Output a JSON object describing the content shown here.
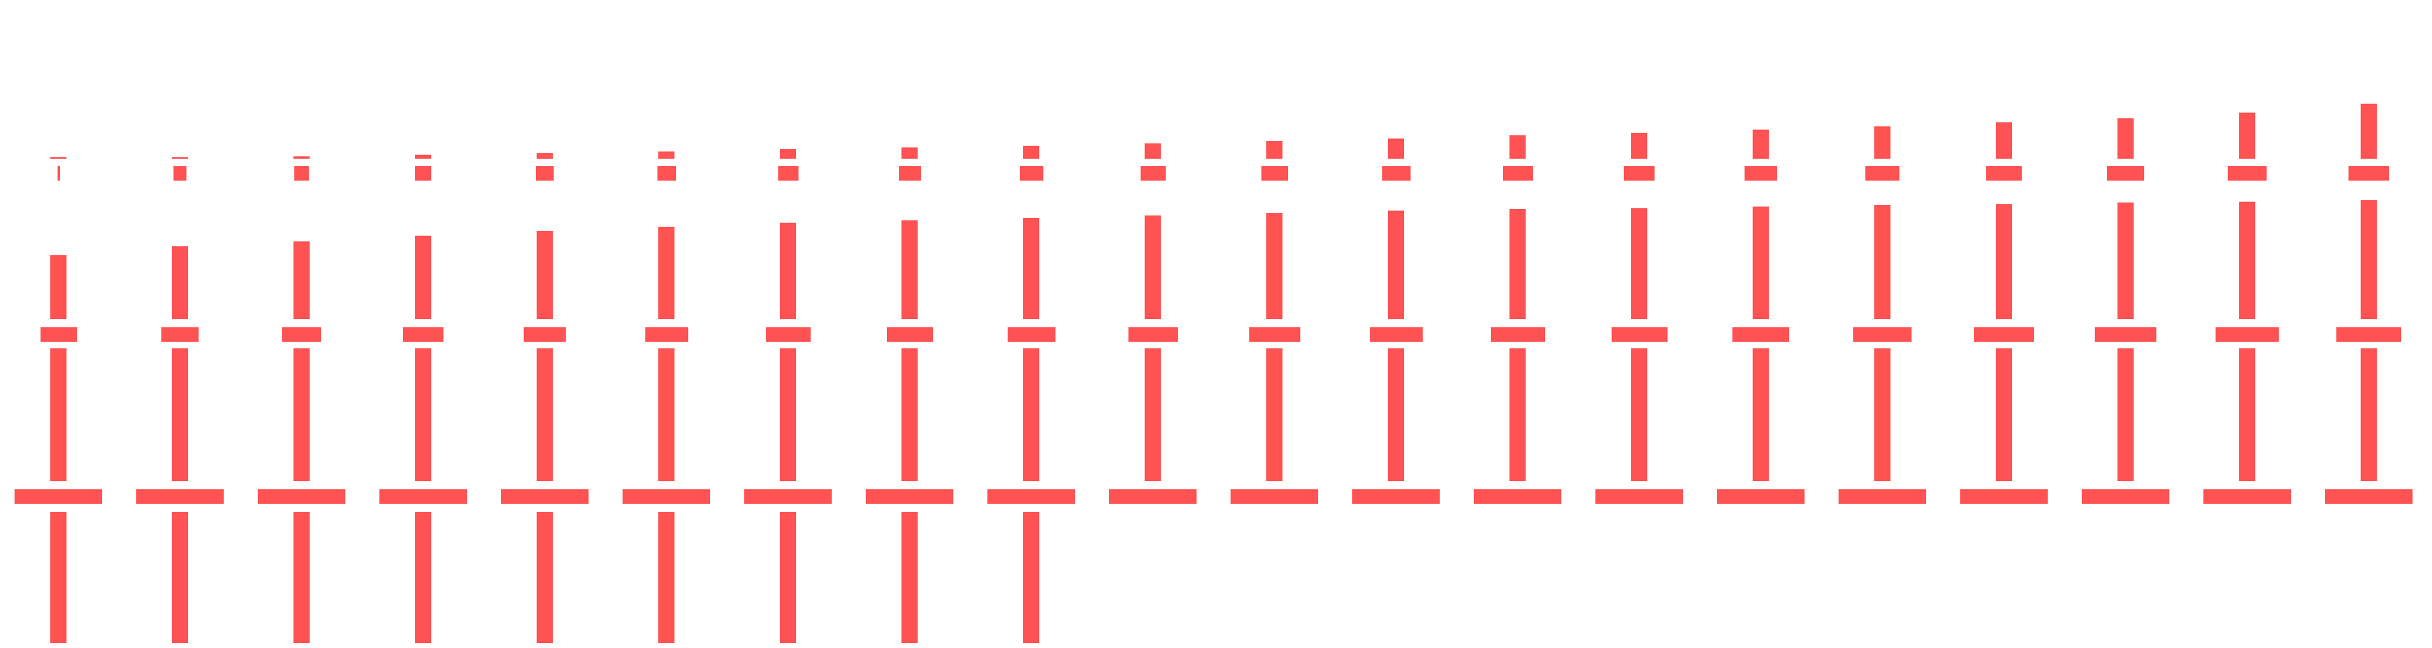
{
  "colors": {
    "background": "#ffffff",
    "mark": "#ff5252"
  },
  "columns": [
    {
      "bars": [
        0.0,
        0.33,
        1.0,
        1.0
      ],
      "stems": [
        0.02,
        0.5,
        1.0,
        1.0
      ]
    },
    {
      "bars": [
        0.02,
        0.34,
        1.0,
        1.0
      ],
      "stems": [
        0.03,
        0.57,
        1.0,
        1.0
      ]
    },
    {
      "bars": [
        0.04,
        0.36,
        1.0,
        1.0
      ],
      "stems": [
        0.05,
        0.61,
        1.0,
        1.0
      ]
    },
    {
      "bars": [
        0.06,
        0.38,
        1.0,
        1.0
      ],
      "stems": [
        0.07,
        0.65,
        1.0,
        1.0
      ]
    },
    {
      "bars": [
        0.08,
        0.4,
        1.0,
        1.0
      ],
      "stems": [
        0.1,
        0.69,
        1.0,
        1.0
      ]
    },
    {
      "bars": [
        0.1,
        0.42,
        1.0,
        1.0
      ],
      "stems": [
        0.13,
        0.72,
        1.0,
        1.0
      ]
    },
    {
      "bars": [
        0.12,
        0.44,
        1.0,
        1.0
      ],
      "stems": [
        0.17,
        0.75,
        1.0,
        1.0
      ]
    },
    {
      "bars": [
        0.14,
        0.46,
        1.0,
        1.0
      ],
      "stems": [
        0.2,
        0.77,
        1.0,
        1.0
      ]
    },
    {
      "bars": [
        0.16,
        0.48,
        1.0,
        1.0
      ],
      "stems": [
        0.24,
        0.79,
        1.0,
        1.0
      ]
    },
    {
      "bars": [
        0.18,
        0.5,
        1.0,
        0.0
      ],
      "stems": [
        0.28,
        0.81,
        1.0,
        0.0
      ]
    },
    {
      "bars": [
        0.2,
        0.52,
        1.0,
        0.0
      ],
      "stems": [
        0.32,
        0.83,
        1.0,
        0.0
      ]
    },
    {
      "bars": [
        0.22,
        0.54,
        1.0,
        0.0
      ],
      "stems": [
        0.37,
        0.85,
        1.0,
        0.0
      ]
    },
    {
      "bars": [
        0.24,
        0.56,
        1.0,
        0.0
      ],
      "stems": [
        0.42,
        0.86,
        1.0,
        0.0
      ]
    },
    {
      "bars": [
        0.26,
        0.58,
        1.0,
        0.0
      ],
      "stems": [
        0.47,
        0.87,
        1.0,
        0.0
      ]
    },
    {
      "bars": [
        0.28,
        0.6,
        1.0,
        0.0
      ],
      "stems": [
        0.53,
        0.88,
        1.0,
        0.0
      ]
    },
    {
      "bars": [
        0.3,
        0.62,
        1.0,
        0.0
      ],
      "stems": [
        0.59,
        0.89,
        1.0,
        0.0
      ]
    },
    {
      "bars": [
        0.32,
        0.64,
        1.0,
        0.0
      ],
      "stems": [
        0.66,
        0.9,
        1.0,
        0.0
      ]
    },
    {
      "bars": [
        0.34,
        0.66,
        1.0,
        0.0
      ],
      "stems": [
        0.74,
        0.91,
        1.0,
        0.0
      ]
    },
    {
      "bars": [
        0.36,
        0.68,
        1.0,
        0.0
      ],
      "stems": [
        0.84,
        0.92,
        1.0,
        0.0
      ]
    },
    {
      "bars": [
        0.38,
        0.7,
        1.0,
        0.0
      ],
      "stems": [
        1.0,
        0.93,
        1.0,
        0.0
      ]
    }
  ]
}
